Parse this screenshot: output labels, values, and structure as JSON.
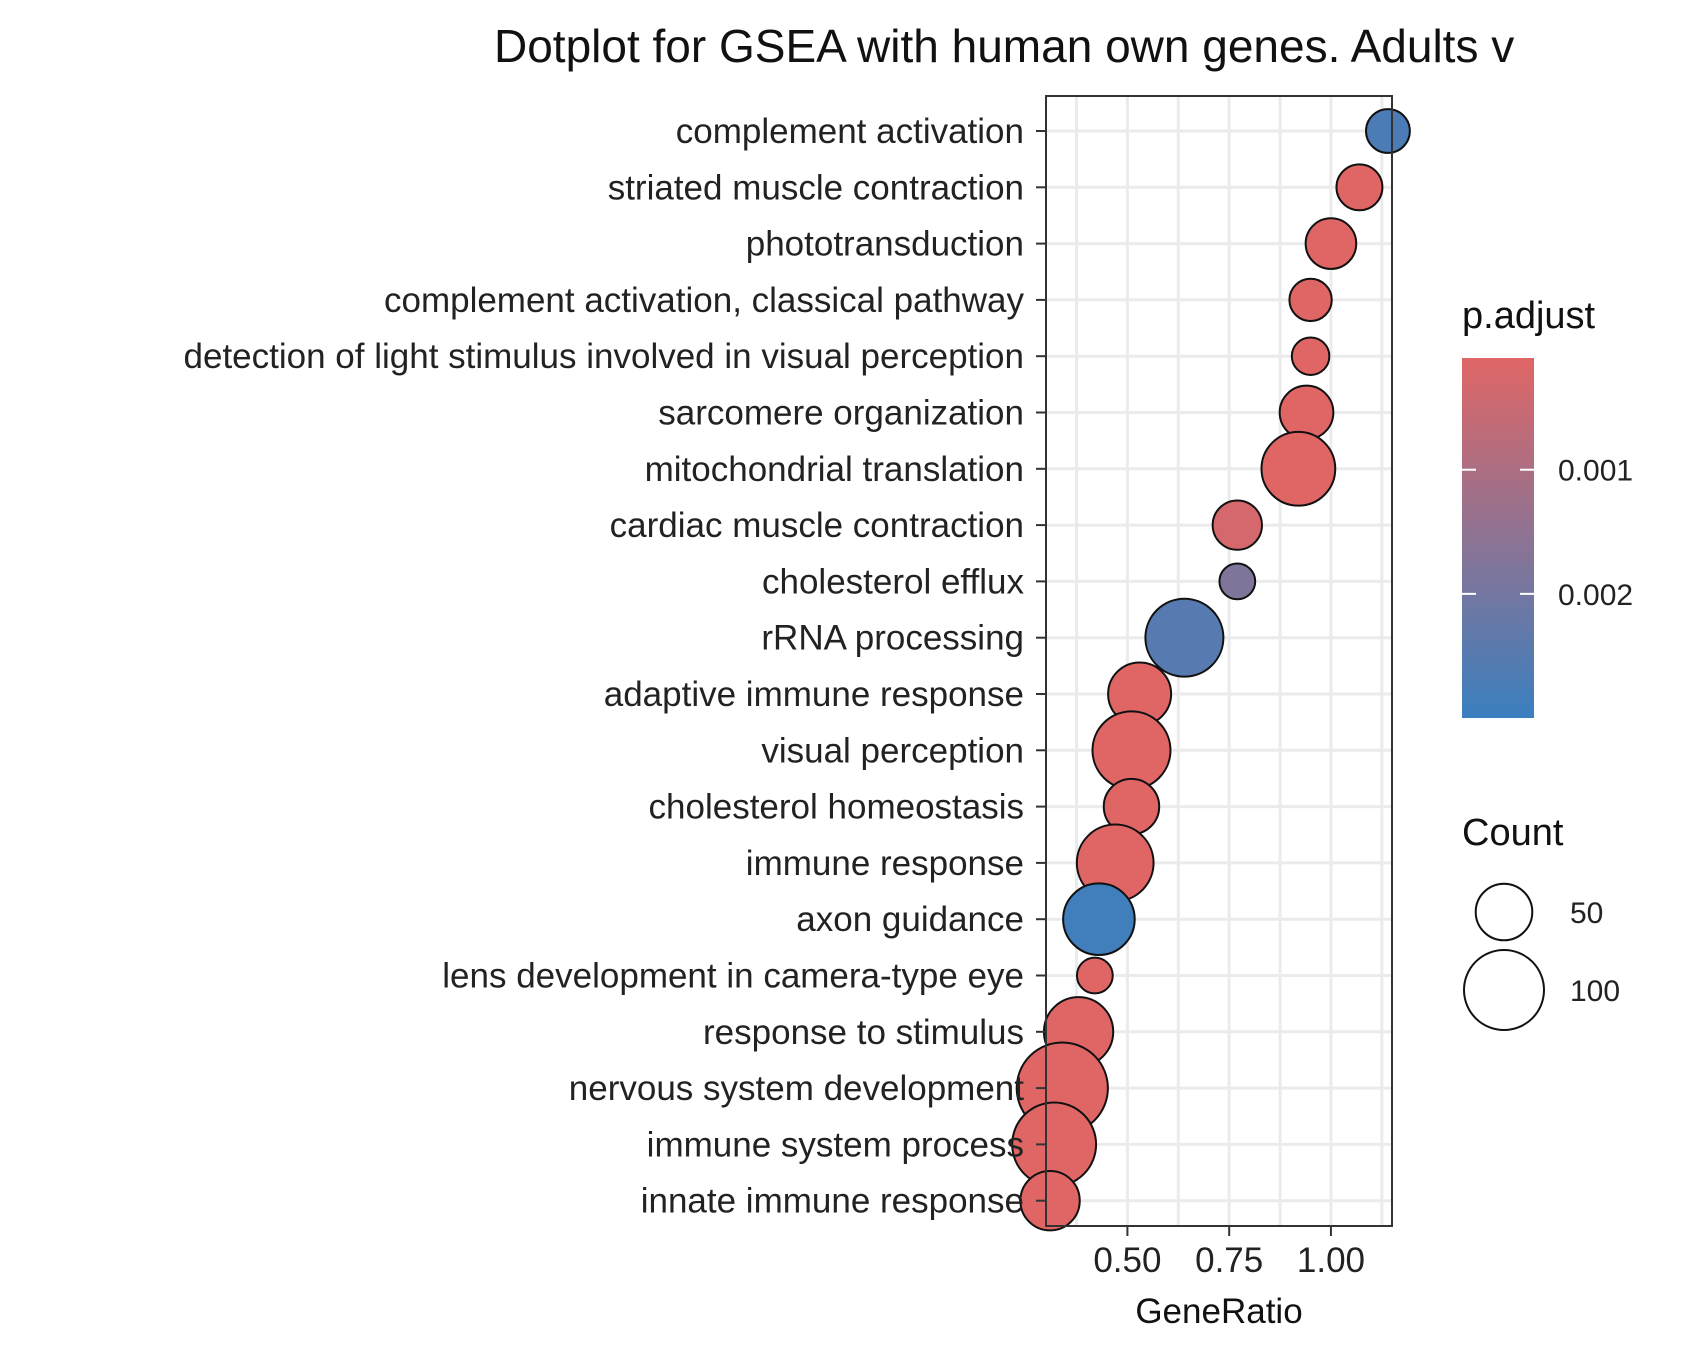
{
  "chart_data": {
    "type": "scatter",
    "title": "Dotplot for GSEA with human own genes. Adults v",
    "xlabel": "GeneRatio",
    "ylabel": "",
    "xlim": [
      0.3,
      1.15
    ],
    "xticks": [
      0.5,
      0.75,
      1.0
    ],
    "xtick_labels": [
      "0.50",
      "0.75",
      "1.00"
    ],
    "grid": true,
    "legend_position": "right",
    "categories": [
      "complement activation",
      "striated muscle contraction",
      "phototransduction",
      "complement activation, classical pathway",
      "detection of light stimulus involved in visual perception",
      "sarcomere organization",
      "mitochondrial translation",
      "cardiac muscle contraction",
      "cholesterol efflux",
      "rRNA processing",
      "adaptive immune response",
      "visual perception",
      "cholesterol homeostasis",
      "immune response",
      "axon guidance",
      "lens development in camera-type eye",
      "response to stimulus",
      "nervous system development",
      "immune system process",
      "innate immune response"
    ],
    "points": [
      {
        "term": "complement activation",
        "gene_ratio": 1.14,
        "count": 30,
        "p_adjust": 0.0027
      },
      {
        "term": "striated muscle contraction",
        "gene_ratio": 1.07,
        "count": 33,
        "p_adjust": 0.0001
      },
      {
        "term": "phototransduction",
        "gene_ratio": 1.0,
        "count": 40,
        "p_adjust": 0.0001
      },
      {
        "term": "complement activation, classical pathway",
        "gene_ratio": 0.95,
        "count": 28,
        "p_adjust": 0.0001
      },
      {
        "term": "detection of light stimulus involved in visual perception",
        "gene_ratio": 0.95,
        "count": 22,
        "p_adjust": 0.0001
      },
      {
        "term": "sarcomere organization",
        "gene_ratio": 0.94,
        "count": 45,
        "p_adjust": 0.0001
      },
      {
        "term": "mitochondrial translation",
        "gene_ratio": 0.92,
        "count": 85,
        "p_adjust": 0.0001
      },
      {
        "term": "cardiac muscle contraction",
        "gene_ratio": 0.77,
        "count": 38,
        "p_adjust": 0.0003
      },
      {
        "term": "cholesterol efflux",
        "gene_ratio": 0.77,
        "count": 20,
        "p_adjust": 0.0018
      },
      {
        "term": "rRNA processing",
        "gene_ratio": 0.64,
        "count": 95,
        "p_adjust": 0.0025
      },
      {
        "term": "adaptive immune response",
        "gene_ratio": 0.53,
        "count": 62,
        "p_adjust": 0.0001
      },
      {
        "term": "visual perception",
        "gene_ratio": 0.51,
        "count": 95,
        "p_adjust": 0.0001
      },
      {
        "term": "cholesterol homeostasis",
        "gene_ratio": 0.51,
        "count": 48,
        "p_adjust": 0.0001
      },
      {
        "term": "immune response",
        "gene_ratio": 0.47,
        "count": 92,
        "p_adjust": 0.0001
      },
      {
        "term": "axon guidance",
        "gene_ratio": 0.43,
        "count": 80,
        "p_adjust": 0.0029
      },
      {
        "term": "lens development in camera-type eye",
        "gene_ratio": 0.42,
        "count": 20,
        "p_adjust": 0.0001
      },
      {
        "term": "response to stimulus",
        "gene_ratio": 0.38,
        "count": 75,
        "p_adjust": 0.0001
      },
      {
        "term": "nervous system development",
        "gene_ratio": 0.34,
        "count": 130,
        "p_adjust": 0.0001
      },
      {
        "term": "immune system process",
        "gene_ratio": 0.32,
        "count": 110,
        "p_adjust": 0.0001
      },
      {
        "term": "innate immune response",
        "gene_ratio": 0.31,
        "count": 55,
        "p_adjust": 0.0001
      }
    ],
    "color_legend": {
      "title": "p.adjust",
      "low_color": "#E06666",
      "high_color": "#3A7FBF",
      "range": [
        0.0001,
        0.003
      ],
      "ticks": [
        0.001,
        0.002
      ],
      "tick_labels": [
        "0.001",
        "0.002"
      ]
    },
    "size_legend": {
      "title": "Count",
      "values": [
        50,
        100
      ],
      "labels": [
        "50",
        "100"
      ]
    }
  }
}
